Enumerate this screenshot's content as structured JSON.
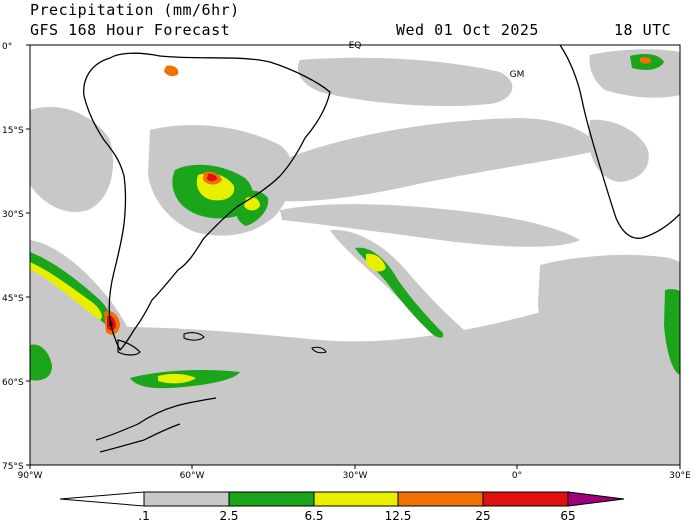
{
  "header": {
    "title": "Precipitation (mm/6hr)",
    "subtitle": "GFS 168 Hour Forecast",
    "valid_date": "Wed 01 Oct 2025",
    "valid_time": "18 UTC"
  },
  "map": {
    "lat_labels": [
      "0°",
      "15°S",
      "30°S",
      "45°S",
      "60°S",
      "75°S"
    ],
    "lon_labels": [
      "90°W",
      "60°W",
      "30°W",
      "0°",
      "30°E"
    ],
    "point_labels": {
      "equator": "EQ",
      "greenwich_meridian": "GM"
    },
    "colors": {
      "land_precip_light": "#c8c8c8",
      "green": "#1aa51a",
      "yellow": "#e8f000",
      "orange": "#f07000",
      "red": "#e01010",
      "dark": "#600030",
      "coast": "#000000"
    }
  },
  "colorbar": {
    "labels": [
      ".1",
      "2.5",
      "6.5",
      "12.5",
      "25",
      "65"
    ],
    "colors": [
      "#ffffff",
      "#c8c8c8",
      "#1aa51a",
      "#e8f000",
      "#f07000",
      "#e01010",
      "#a0007a"
    ]
  }
}
